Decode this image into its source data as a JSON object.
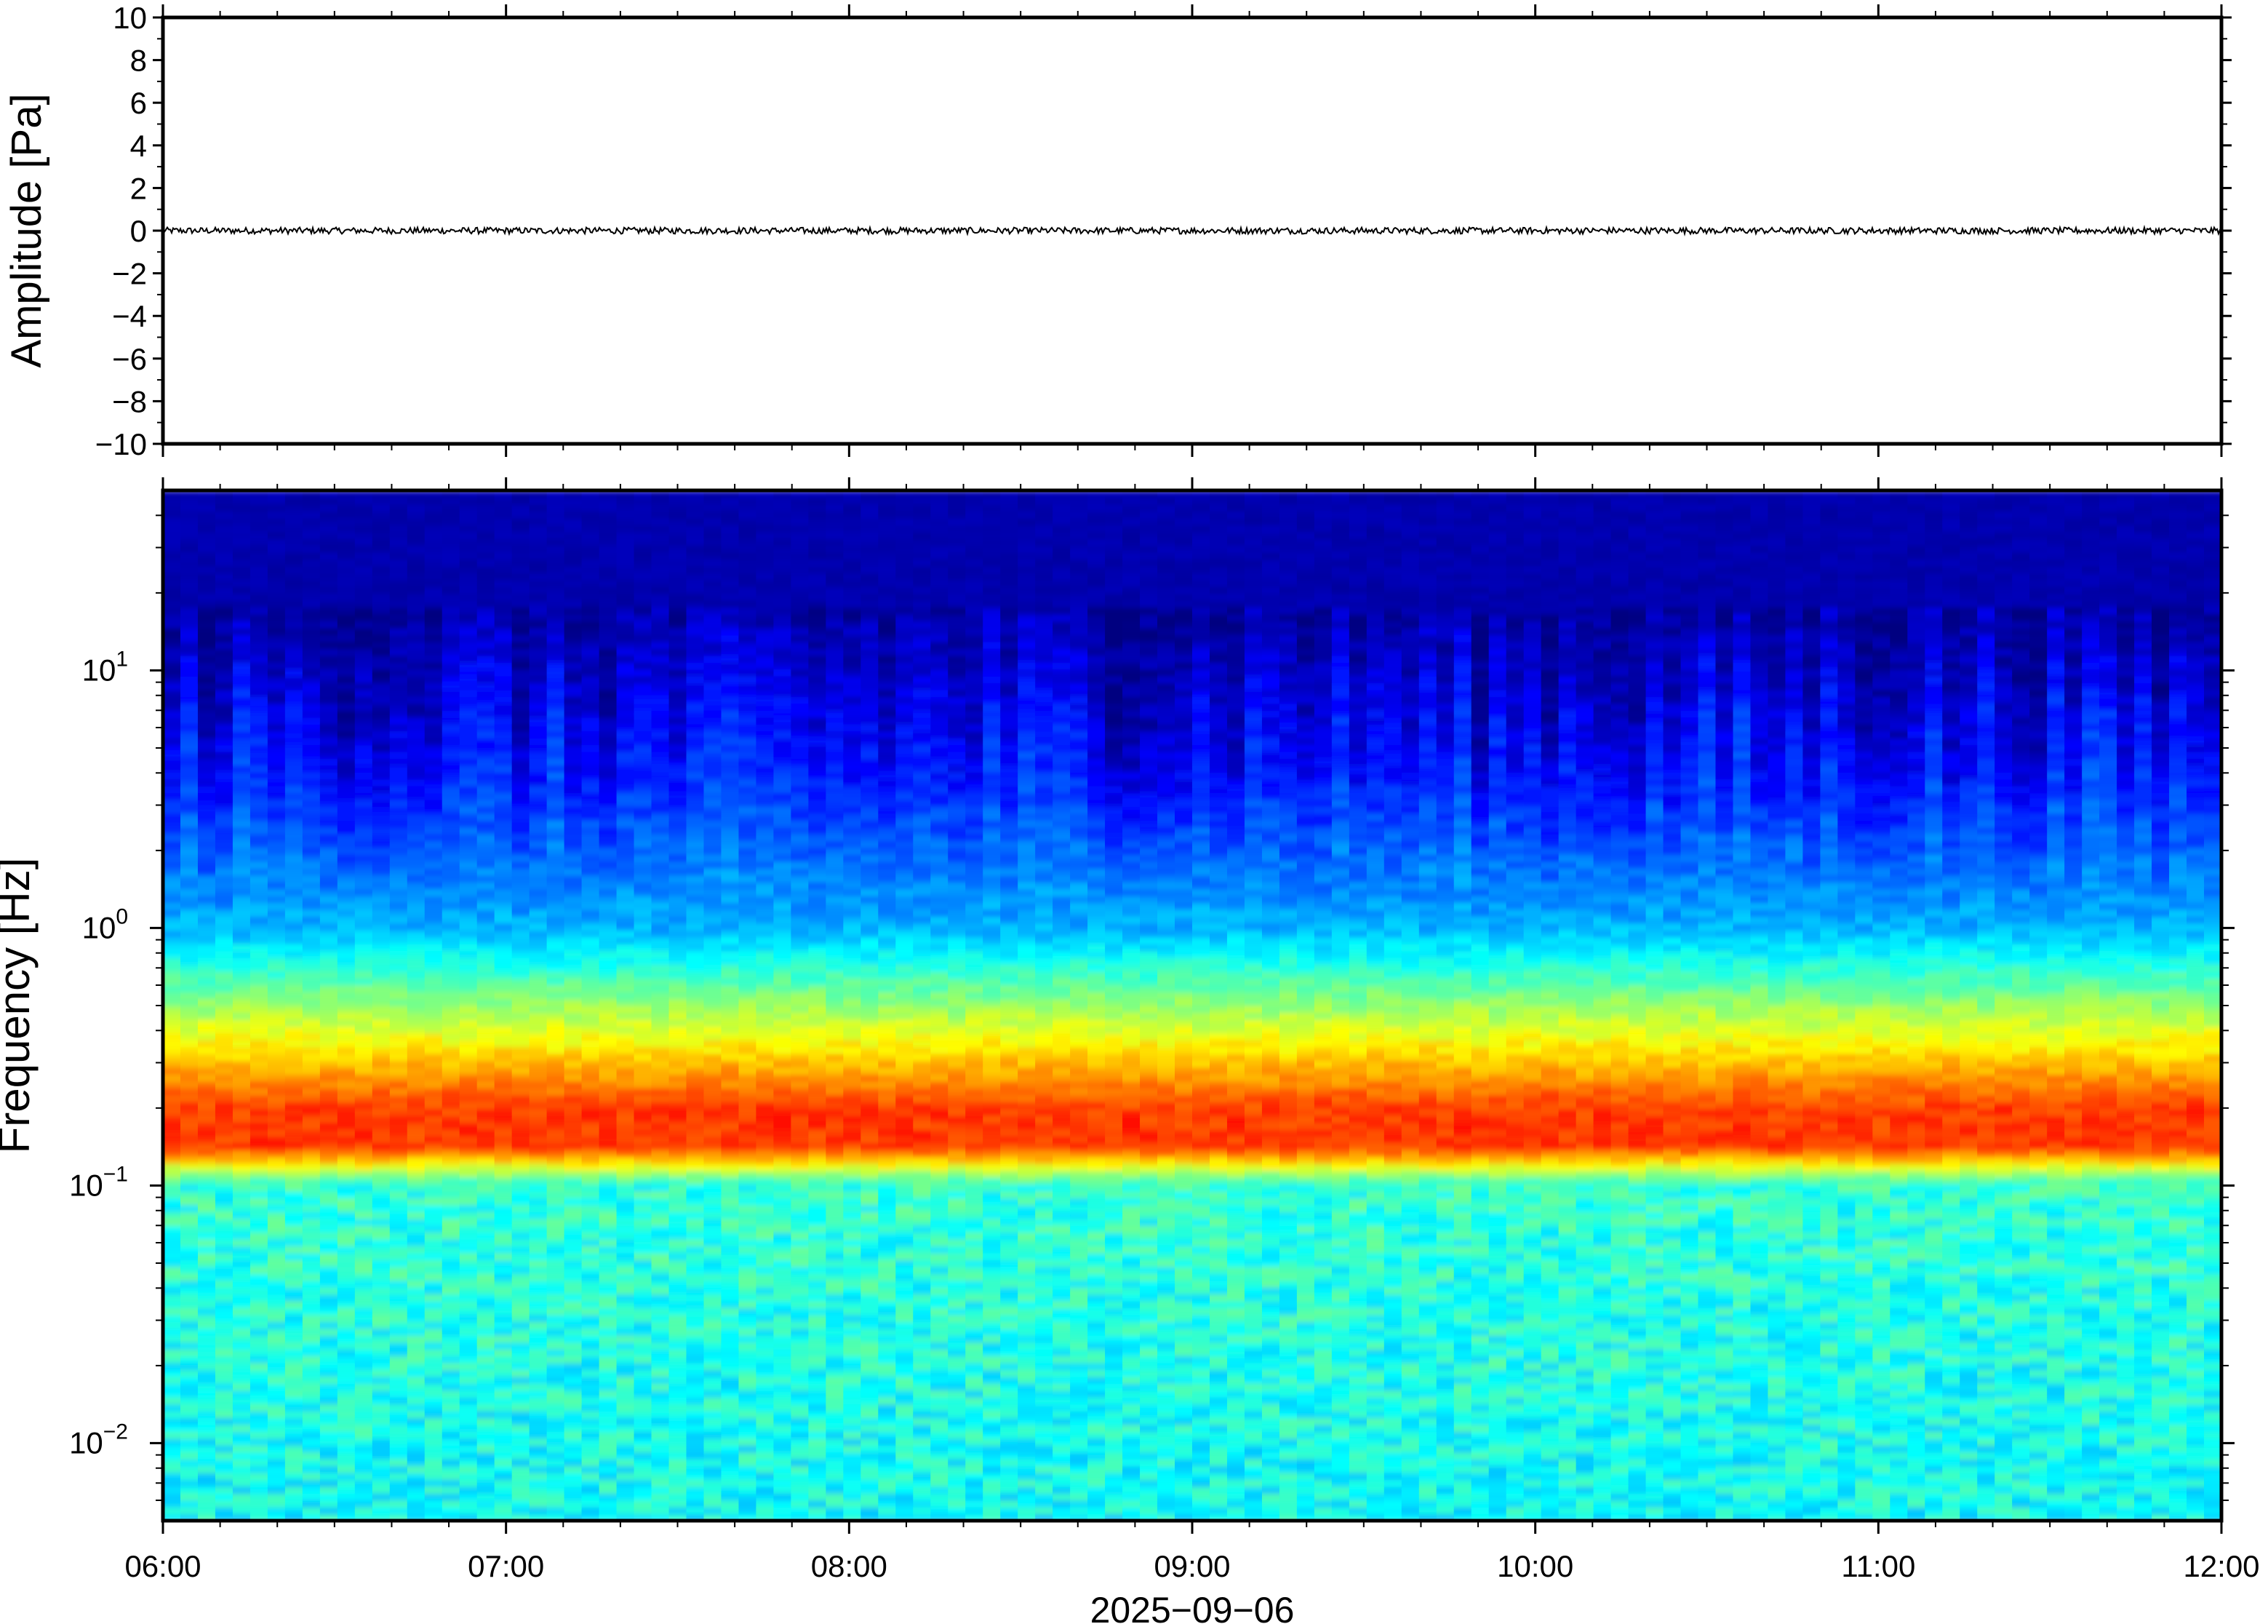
{
  "chart_data": [
    {
      "type": "line",
      "title": "",
      "xlabel": "",
      "ylabel": "Amplitude [Pa]",
      "xlim": [
        "06:00",
        "12:00"
      ],
      "ylim": [
        -10,
        10
      ],
      "y_ticks": [
        "10",
        "8",
        "6",
        "4",
        "2",
        "0",
        "−2",
        "−4",
        "−6",
        "−8",
        "−10"
      ],
      "grid": false,
      "series": [
        {
          "description_of_shape": "flat trace near 0 with small noise",
          "approx_amplitude_range": [
            -0.15,
            0.15
          ],
          "color": "#000000"
        }
      ]
    },
    {
      "type": "heatmap",
      "title": "",
      "xlabel": "2025−09−06",
      "ylabel": "Frequency [Hz]",
      "x_ticks": [
        "06:00",
        "07:00",
        "08:00",
        "09:00",
        "10:00",
        "11:00",
        "12:00"
      ],
      "xlim": [
        "06:00",
        "12:00"
      ],
      "y_scale": "log",
      "ylim": [
        0.005,
        50
      ],
      "y_ticks": [
        {
          "base": "10",
          "exp": "1",
          "value": 10
        },
        {
          "base": "10",
          "exp": "0",
          "value": 1
        },
        {
          "base": "10",
          "exp": "−1",
          "value": 0.1
        },
        {
          "base": "10",
          "exp": "−2",
          "value": 0.01
        }
      ],
      "colormap": "jet",
      "grid": false,
      "features": {
        "dominant_band_hz": [
          0.15,
          0.25
        ],
        "peak_frequency_hz": 0.18,
        "low_power_above_hz": 3
      }
    }
  ]
}
